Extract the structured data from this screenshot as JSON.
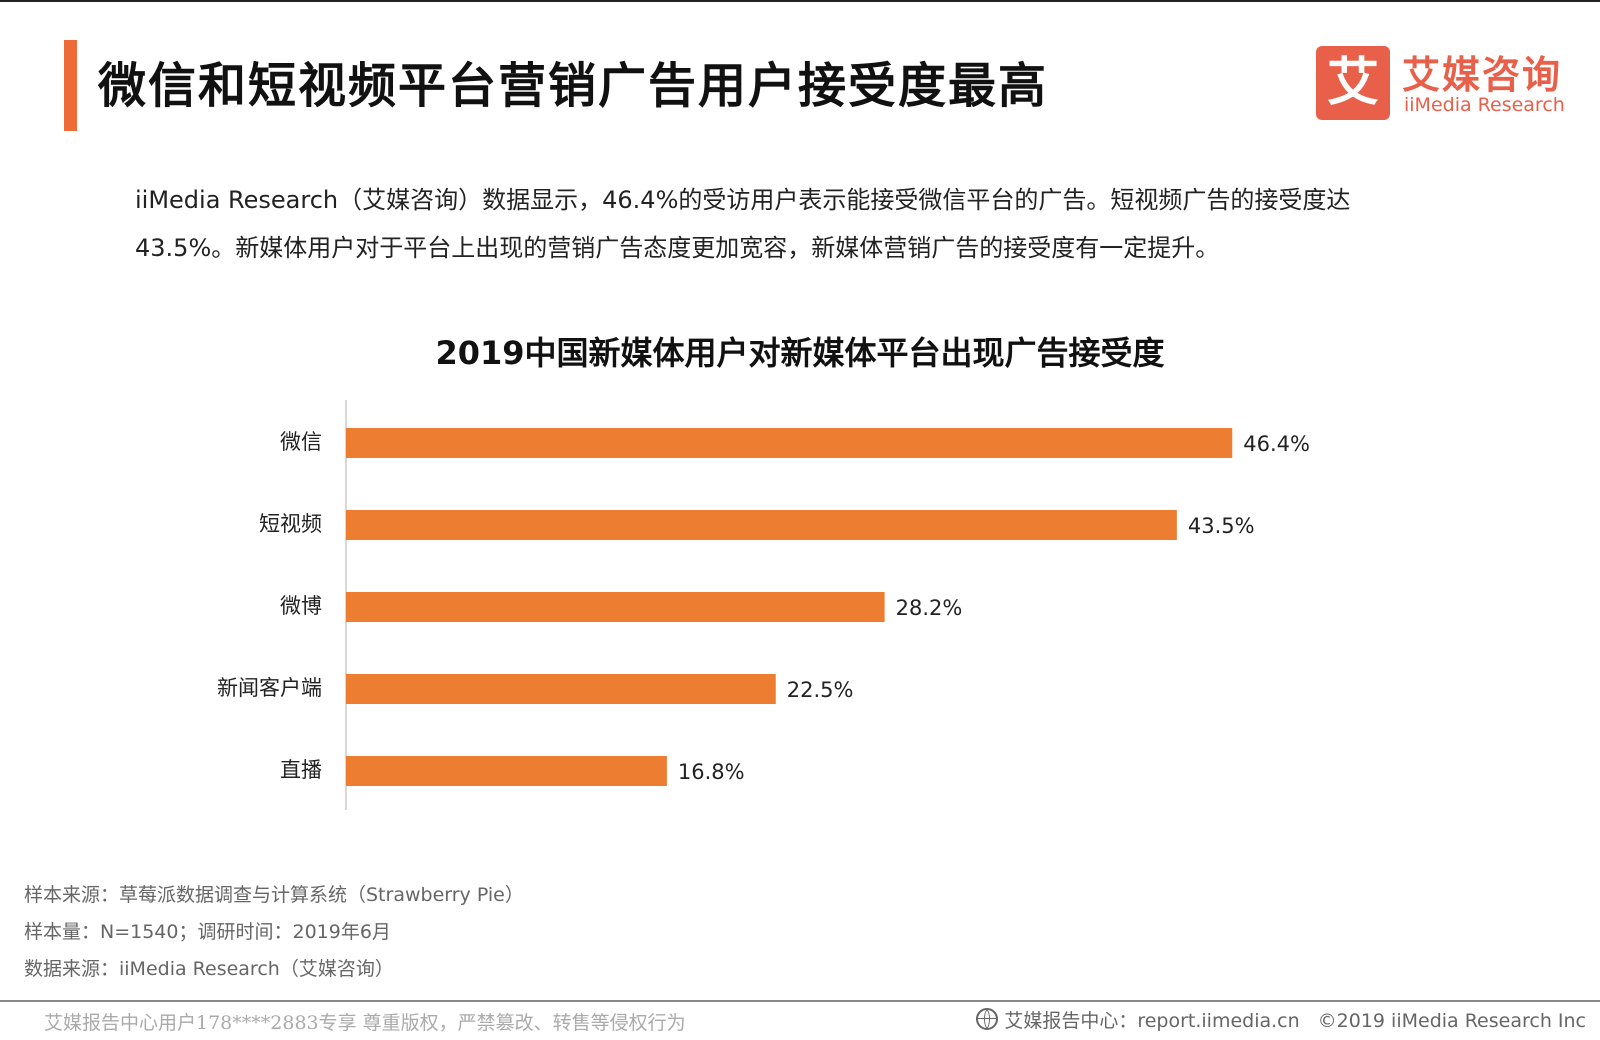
{
  "header": {
    "title": "微信和短视频平台营销广告用户接受度最高",
    "logo": {
      "mark": "艾",
      "cn": "艾媒咨询",
      "en": "iiMedia Research"
    }
  },
  "intro": {
    "line1": "iiMedia Research（艾媒咨询）数据显示，46.4%的受访用户表示能接受微信平台的广告。短视频广告的接受度达",
    "line2": "43.5%。新媒体用户对于平台上出现的营销广告态度更加宽容，新媒体营销广告的接受度有一定提升。"
  },
  "chart_data": {
    "type": "bar",
    "orientation": "horizontal",
    "title": "2019中国新媒体用户对新媒体平台出现广告接受度",
    "categories": [
      "微信",
      "短视频",
      "微博",
      "新闻客户端",
      "直播"
    ],
    "values": [
      46.4,
      43.5,
      28.2,
      22.5,
      16.8
    ],
    "value_labels": [
      "46.4%",
      "43.5%",
      "28.2%",
      "22.5%",
      "16.8%"
    ],
    "unit": "%",
    "xlim": [
      0,
      50
    ],
    "xlabel": "",
    "ylabel": "",
    "color": "#ed7d31",
    "grid": false
  },
  "notes": {
    "sample_source": "样本来源：草莓派数据调查与计算系统（Strawberry Pie）",
    "sample_size": "样本量：N=1540；调研时间：2019年6月",
    "data_source": "数据来源：iiMedia Research（艾媒咨询）"
  },
  "footer": {
    "watermark": "艾媒报告中心用户178****2883专享 尊重版权，严禁篡改、转售等侵权行为",
    "site": "艾媒报告中心：report.iimedia.cn",
    "copyright": "©2019  iiMedia Research  Inc"
  }
}
